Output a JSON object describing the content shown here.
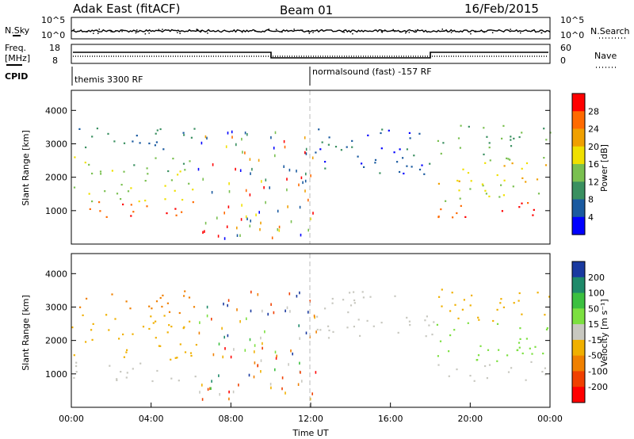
{
  "header": {
    "title_left": "Adak East (fitACF)",
    "title_center": "Beam 01",
    "title_right": "16/Feb/2015"
  },
  "panels": {
    "nsky_label": "N.Sky",
    "nsearch_label": "N.Search",
    "noise_ticks_left": [
      "10^5",
      "10^0"
    ],
    "noise_ticks_right": [
      "10^5",
      "10^0"
    ],
    "freq_label_1": "Freq.",
    "freq_label_2": "[MHz]",
    "freq_ticks": [
      "18",
      "8"
    ],
    "nave_label": "Nave",
    "nave_ticks": [
      "60",
      "0"
    ],
    "cpid_label": "CPID",
    "cpid_modes": [
      "themis 3300 RF",
      "normalsound (fast) -157 RF"
    ]
  },
  "colorbars": {
    "power": {
      "label": "Power [dB]",
      "ticks": [
        "28",
        "24",
        "20",
        "16",
        "12",
        "8",
        "4"
      ],
      "colors": [
        "#ff0000",
        "#ff6a00",
        "#f0a000",
        "#f0e000",
        "#7ac050",
        "#3a9060",
        "#1a5aa0",
        "#0000ff"
      ]
    },
    "velocity": {
      "label": "Velocity [m s⁻¹]",
      "ticks": [
        "200",
        "100",
        "50",
        "15",
        "-15",
        "-50",
        "-100",
        "-200"
      ],
      "colors": [
        "#1a3aa0",
        "#1f8a6a",
        "#3cc040",
        "#7ce040",
        "#c8c8c0",
        "#f0b000",
        "#f08000",
        "#f04000",
        "#ff0000"
      ]
    }
  },
  "chart_data": [
    {
      "type": "heatmap",
      "ylabel": "Slant Range [km]",
      "yticks": [
        "4000",
        "3000",
        "2000",
        "1000"
      ],
      "ylim": [
        0,
        4600
      ],
      "xlim": [
        0,
        24
      ],
      "colorbar": "Power [dB]",
      "bands": [
        {
          "t0": 0.0,
          "t1": 6.3,
          "r0": 800,
          "r1": 1300,
          "level": 28
        },
        {
          "t0": 0.0,
          "t1": 6.3,
          "r0": 1300,
          "r1": 2000,
          "level": 16
        },
        {
          "t0": 0.0,
          "t1": 6.3,
          "r0": 2000,
          "r1": 2700,
          "level": 14
        },
        {
          "t0": 0.3,
          "t1": 6.2,
          "r0": 2700,
          "r1": 3500,
          "level": 8
        },
        {
          "t0": 12.2,
          "t1": 18.4,
          "r0": 2100,
          "r1": 3500,
          "level": 6
        },
        {
          "t0": 15.3,
          "t1": 17.8,
          "r0": 2350,
          "r1": 2650,
          "level": 4
        },
        {
          "t0": 18.3,
          "t1": 24.0,
          "r0": 800,
          "r1": 1300,
          "level": 28
        },
        {
          "t0": 18.3,
          "t1": 24.0,
          "r0": 1300,
          "r1": 1800,
          "level": 16
        },
        {
          "t0": 18.3,
          "t1": 24.0,
          "r0": 1800,
          "r1": 2500,
          "level": 20
        },
        {
          "t0": 18.3,
          "t1": 24.0,
          "r0": 2500,
          "r1": 3600,
          "level": 12
        }
      ]
    },
    {
      "type": "heatmap",
      "ylabel": "Slant Range [km]",
      "yticks": [
        "4000",
        "3000",
        "2000",
        "1000"
      ],
      "ylim": [
        0,
        4600
      ],
      "xlim": [
        0,
        24
      ],
      "colorbar": "Velocity [m s⁻¹]",
      "bands": [
        {
          "t0": 0.0,
          "t1": 6.3,
          "r0": 800,
          "r1": 1400,
          "level": 0
        },
        {
          "t0": 0.0,
          "t1": 6.3,
          "r0": 1400,
          "r1": 2800,
          "level": -30
        },
        {
          "t0": 0.3,
          "t1": 6.2,
          "r0": 2800,
          "r1": 3500,
          "level": -60
        },
        {
          "t0": 12.2,
          "t1": 18.4,
          "r0": 2100,
          "r1": 3500,
          "level": 0
        },
        {
          "t0": 18.3,
          "t1": 24.0,
          "r0": 800,
          "r1": 1400,
          "level": 0
        },
        {
          "t0": 18.3,
          "t1": 24.0,
          "r0": 1400,
          "r1": 2600,
          "level": 20
        },
        {
          "t0": 18.3,
          "t1": 24.0,
          "r0": 2600,
          "r1": 3600,
          "level": -30
        }
      ]
    }
  ],
  "xaxis": {
    "ticks": [
      "00:00",
      "04:00",
      "08:00",
      "12:00",
      "16:00",
      "20:00",
      "00:00"
    ],
    "label": "Time UT"
  }
}
